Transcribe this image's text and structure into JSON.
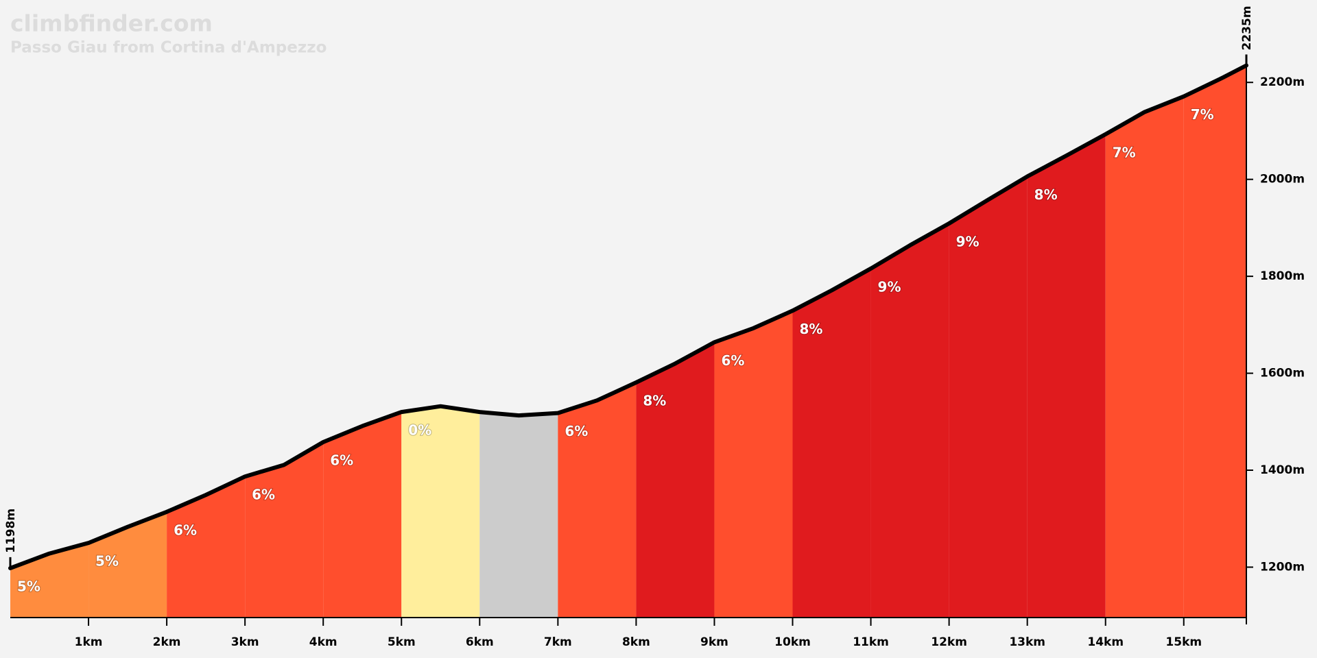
{
  "chart_data": {
    "type": "area",
    "title": "climbfinder.com",
    "subtitle": "Passo Giau from Cortina d'Ampezzo",
    "x": [
      0,
      0.5,
      1,
      1.5,
      2,
      2.5,
      3,
      3.5,
      4,
      4.5,
      5,
      5.5,
      6,
      6.5,
      7,
      7.5,
      8,
      8.5,
      9,
      9.5,
      10,
      10.5,
      11,
      11.5,
      12,
      12.5,
      13,
      13.5,
      14,
      14.5,
      15,
      15.5,
      15.8
    ],
    "values": [
      1198,
      1228,
      1250,
      1283,
      1314,
      1349,
      1387,
      1411,
      1458,
      1491,
      1520,
      1532,
      1520,
      1513,
      1518,
      1544,
      1581,
      1620,
      1664,
      1693,
      1729,
      1771,
      1816,
      1864,
      1909,
      1958,
      2006,
      2049,
      2093,
      2139,
      2171,
      2210,
      2235
    ],
    "value_labels": [
      "1198m",
      null,
      null,
      null,
      null,
      null,
      null,
      null,
      null,
      null,
      null,
      null,
      null,
      null,
      null,
      null,
      null,
      null,
      null,
      null,
      null,
      null,
      null,
      null,
      null,
      null,
      null,
      null,
      null,
      null,
      null,
      null,
      "2235m"
    ],
    "color": "#000000",
    "sections": {
      "bins": [
        0,
        1,
        2,
        3,
        4,
        5,
        6,
        7,
        8,
        9,
        10,
        11,
        12,
        13,
        14,
        15,
        15.8
      ],
      "values": [
        5,
        5,
        6,
        6,
        6,
        0,
        -1,
        6,
        8,
        6,
        8,
        9,
        9,
        8,
        7,
        7
      ],
      "value_labels": [
        "5%",
        "5%",
        "6%",
        "6%",
        "6%",
        "0%",
        null,
        "6%",
        "8%",
        "6%",
        "8%",
        "9%",
        "9%",
        "8%",
        "7%",
        "7%"
      ],
      "colors": [
        "#ff8c3e",
        "#ff8c3e",
        "#ff4e2d",
        "#ff4e2d",
        "#ff4e2d",
        "#ffee9c",
        "#cccccc",
        "#ff4e2d",
        "#e01b1e",
        "#ff4e2d",
        "#e01b1e",
        "#e01b1e",
        "#e01b1e",
        "#e01b1e",
        "#ff4e2d",
        "#ff4e2d"
      ]
    },
    "xlim": [
      0,
      15.8
    ],
    "ylim": [
      1096,
      2370
    ],
    "xticks": [
      {
        "value": 1,
        "label": "1km"
      },
      {
        "value": 2,
        "label": "2km"
      },
      {
        "value": 3,
        "label": "3km"
      },
      {
        "value": 4,
        "label": "4km"
      },
      {
        "value": 5,
        "label": "5km"
      },
      {
        "value": 6,
        "label": "6km"
      },
      {
        "value": 7,
        "label": "7km"
      },
      {
        "value": 8,
        "label": "8km"
      },
      {
        "value": 9,
        "label": "9km"
      },
      {
        "value": 10,
        "label": "10km"
      },
      {
        "value": 11,
        "label": "11km"
      },
      {
        "value": 12,
        "label": "12km"
      },
      {
        "value": 13,
        "label": "13km"
      },
      {
        "value": 14,
        "label": "14km"
      },
      {
        "value": 15,
        "label": "15km"
      }
    ],
    "yticks": [
      {
        "value": 1200,
        "label": "1200m"
      },
      {
        "value": 1400,
        "label": "1400m"
      },
      {
        "value": 1600,
        "label": "1600m"
      },
      {
        "value": 1800,
        "label": "1800m"
      },
      {
        "value": 2000,
        "label": "2000m"
      },
      {
        "value": 2200,
        "label": "2200m"
      }
    ]
  }
}
